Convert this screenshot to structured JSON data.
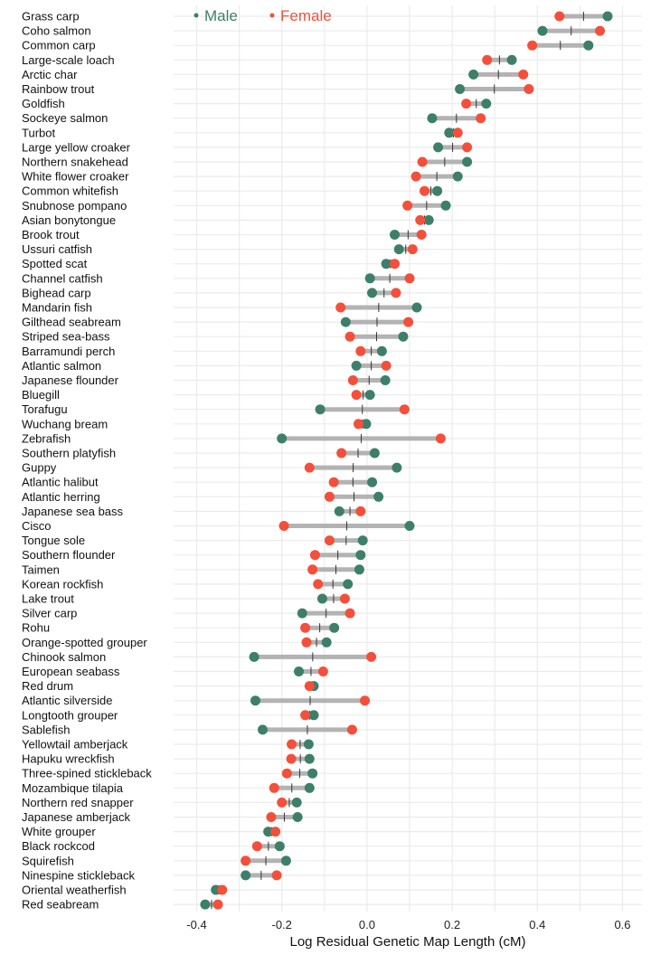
{
  "chart_data": {
    "type": "dumbbell",
    "xlabel": "Log Residual Genetic Map Length (cM)",
    "xlim": [
      -0.43,
      0.65
    ],
    "xticks": [
      -0.4,
      -0.2,
      0.0,
      0.2,
      0.4,
      0.6
    ],
    "xtick_labels": [
      "-0.4",
      "-0.2",
      "0.0",
      "0.2",
      "0.4",
      "0.6"
    ],
    "legend_position": "top",
    "grid": true,
    "series": [
      {
        "name": "Male",
        "color": "#3d7f6a"
      },
      {
        "name": "Female",
        "color": "#f44f3a"
      }
    ],
    "categories": [
      "Grass carp",
      "Coho salmon",
      "Common carp",
      "Large-scale loach",
      "Arctic char",
      "Rainbow trout",
      "Goldfish",
      "Sockeye salmon",
      "Turbot",
      "Large yellow croaker",
      "Northern snakehead",
      "White flower croaker",
      "Common whitefish",
      "Snubnose pompano",
      "Asian bonytongue",
      "Brook trout",
      "Ussuri catfish",
      "Spotted scat",
      "Channel catfish",
      "Bighead carp",
      "Mandarin fish",
      "Gilthead seabream",
      "Striped sea-bass",
      "Barramundi perch",
      "Atlantic salmon",
      "Japanese flounder",
      "Bluegill",
      "Torafugu",
      "Wuchang bream",
      "Zebrafish",
      "Southern platyfish",
      "Guppy",
      "Atlantic halibut",
      "Atlantic herring",
      "Japanese sea bass",
      "Cisco",
      "Tongue sole",
      "Southern flounder",
      "Taimen",
      "Korean rockfish",
      "Lake trout",
      "Silver carp",
      "Rohu",
      "Orange-spotted grouper",
      "Chinook salmon",
      "European seabass",
      "Red drum",
      "Atlantic silverside",
      "Longtooth grouper",
      "Sablefish",
      "Yellowtail amberjack",
      "Hapuku wreckfish",
      "Three-spined stickleback",
      "Mozambique tilapia",
      "Northern red snapper",
      "Japanese amberjack",
      "White grouper",
      "Black rockcod",
      "Squirefish",
      "Ninespine stickleback",
      "Oriental weatherfish",
      "Red seabream"
    ],
    "male": [
      0.565,
      0.412,
      0.52,
      0.34,
      0.25,
      0.218,
      0.28,
      0.153,
      0.193,
      0.167,
      0.235,
      0.213,
      0.165,
      0.185,
      0.145,
      0.065,
      0.075,
      0.045,
      0.007,
      0.012,
      0.117,
      -0.05,
      0.085,
      0.035,
      -0.025,
      0.043,
      0.007,
      -0.11,
      -0.002,
      -0.2,
      0.018,
      0.07,
      0.012,
      0.027,
      -0.065,
      0.1,
      -0.01,
      -0.015,
      -0.018,
      -0.045,
      -0.105,
      -0.152,
      -0.077,
      -0.095,
      -0.265,
      -0.16,
      -0.125,
      -0.262,
      -0.125,
      -0.245,
      -0.137,
      -0.135,
      -0.128,
      -0.135,
      -0.165,
      -0.163,
      -0.232,
      -0.205,
      -0.19,
      -0.285,
      -0.355,
      -0.38
    ],
    "female": [
      0.452,
      0.547,
      0.388,
      0.282,
      0.367,
      0.38,
      0.233,
      0.267,
      0.213,
      0.235,
      0.13,
      0.115,
      0.135,
      0.095,
      0.125,
      0.128,
      0.107,
      0.065,
      0.1,
      0.068,
      -0.062,
      0.097,
      -0.04,
      -0.015,
      0.045,
      -0.033,
      -0.025,
      0.088,
      -0.02,
      0.173,
      -0.06,
      -0.135,
      -0.078,
      -0.088,
      -0.015,
      -0.195,
      -0.088,
      -0.122,
      -0.128,
      -0.115,
      -0.052,
      -0.04,
      -0.145,
      -0.142,
      0.01,
      -0.103,
      -0.135,
      -0.005,
      -0.145,
      -0.035,
      -0.177,
      -0.178,
      -0.188,
      -0.218,
      -0.2,
      -0.225,
      -0.215,
      -0.258,
      -0.285,
      -0.212,
      -0.34,
      -0.35
    ]
  }
}
